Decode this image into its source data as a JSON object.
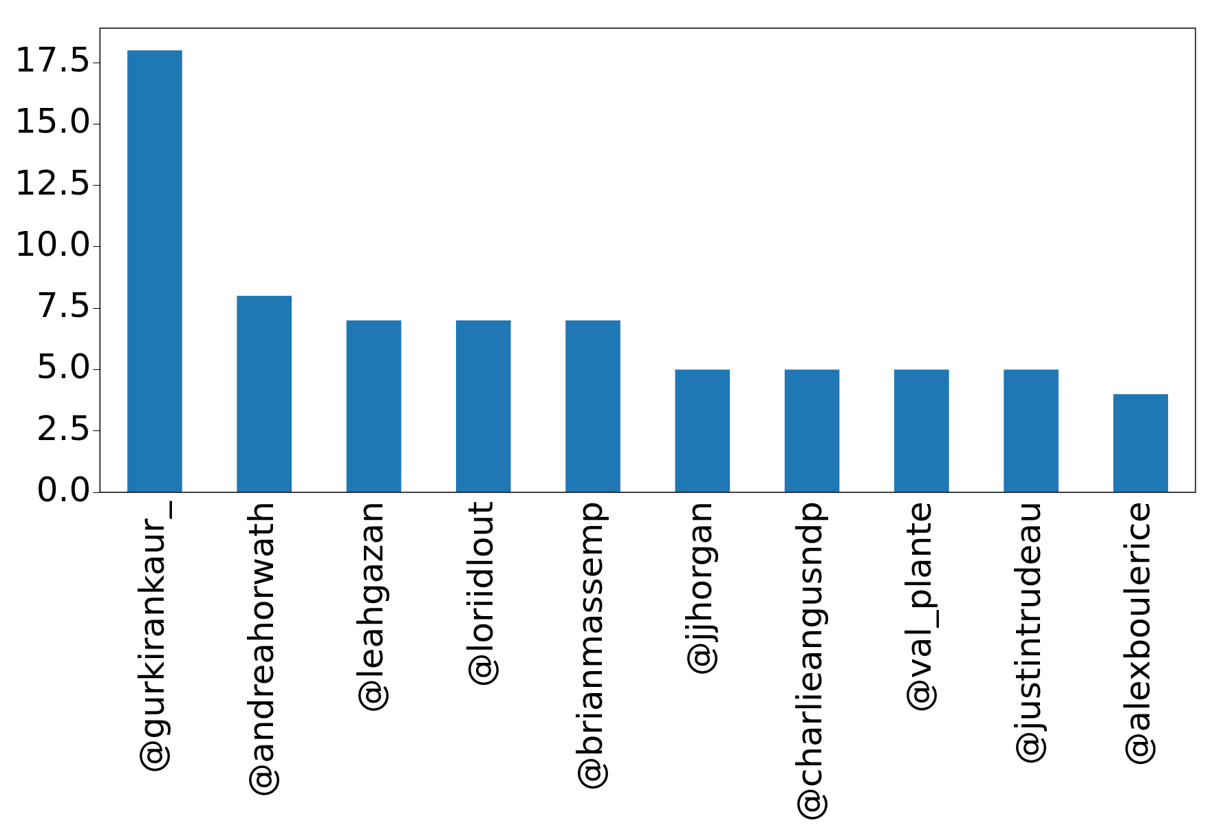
{
  "chart_data": {
    "type": "bar",
    "categories": [
      "@gurkirankaur_",
      "@andreahorwath",
      "@leahgazan",
      "@loriidlout",
      "@brianmassemp",
      "@jjhorgan",
      "@charlieangusndp",
      "@val_plante",
      "@justintrudeau",
      "@alexboulerice"
    ],
    "values": [
      18,
      8,
      7,
      7,
      7,
      5,
      5,
      5,
      5,
      4
    ],
    "color": "#1f77b4",
    "ylim": [
      0,
      18.9
    ],
    "yticks": [
      {
        "value": 0,
        "label": "0.0"
      },
      {
        "value": 2.5,
        "label": "2.5"
      },
      {
        "value": 5,
        "label": "5.0"
      },
      {
        "value": 7.5,
        "label": "7.5"
      },
      {
        "value": 10,
        "label": "10.0"
      },
      {
        "value": 12.5,
        "label": "12.5"
      },
      {
        "value": 15,
        "label": "15.0"
      },
      {
        "value": 17.5,
        "label": "17.5"
      }
    ],
    "grid": false,
    "legend": false
  }
}
